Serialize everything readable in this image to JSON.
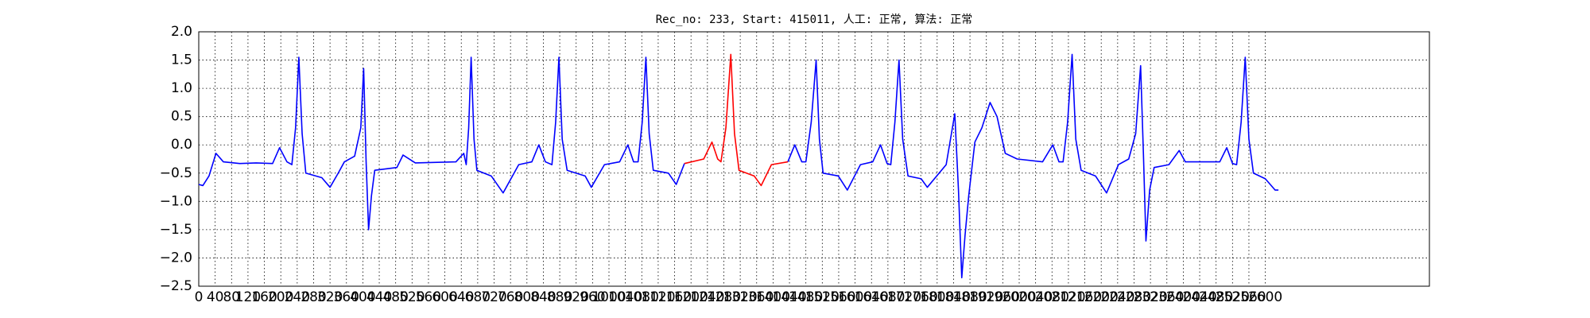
{
  "chart_data": {
    "type": "line",
    "title": "Rec_no: 233, Start: 415011, 人工: 正常, 算法: 正常",
    "x": [
      0,
      10,
      25,
      42,
      60,
      100,
      140,
      180,
      197,
      215,
      227,
      236,
      244,
      252,
      261,
      300,
      320,
      340,
      355,
      380,
      395,
      402,
      408,
      414,
      421,
      429,
      483,
      498,
      528,
      627,
      646,
      652,
      658,
      664,
      671,
      678,
      713,
      742,
      780,
      812,
      829,
      845,
      861,
      870,
      878,
      886,
      898,
      942,
      957,
      989,
      1026,
      1046,
      1060,
      1071,
      1081,
      1090,
      1098,
      1108,
      1145,
      1164,
      1184,
      1231,
      1251,
      1265,
      1273,
      1285,
      1297,
      1306,
      1317,
      1354,
      1371,
      1396,
      1436,
      1453,
      1470,
      1480,
      1493,
      1505,
      1513,
      1522,
      1559,
      1581,
      1613,
      1643,
      1662,
      1678,
      1687,
      1697,
      1707,
      1716,
      1729,
      1761,
      1776,
      1822,
      1843,
      1852,
      1860,
      1868,
      1877,
      1892,
      1909,
      1929,
      1946,
      1966,
      1995,
      2057,
      2082,
      2097,
      2107,
      2118,
      2129,
      2138,
      2151,
      2186,
      2213,
      2242,
      2267,
      2284,
      2296,
      2303,
      2309,
      2318,
      2329,
      2365,
      2390,
      2405,
      2422,
      2489,
      2506,
      2520,
      2530,
      2541,
      2551,
      2560,
      2571,
      2600,
      2624,
      2632
    ],
    "series": [
      {
        "color": "#0000ff",
        "values": [
          -0.7,
          -0.72,
          -0.55,
          -0.15,
          -0.3,
          -0.33,
          -0.32,
          -0.33,
          -0.05,
          -0.3,
          -0.35,
          0.3,
          1.55,
          0.2,
          -0.5,
          -0.58,
          -0.75,
          -0.5,
          -0.3,
          -0.2,
          0.3,
          1.35,
          -0.3,
          -1.5,
          -0.9,
          -0.45,
          -0.4,
          -0.18,
          -0.32,
          -0.3,
          -0.15,
          -0.35,
          0.3,
          1.55,
          0.1,
          -0.45,
          -0.55,
          -0.85,
          -0.35,
          -0.3,
          0,
          -0.3,
          -0.35,
          0.4,
          1.55,
          0.1,
          -0.45,
          -0.55,
          -0.75,
          -0.35,
          -0.3,
          0,
          -0.3,
          -0.3,
          0.4,
          1.55,
          0.2,
          -0.45,
          -0.5,
          -0.7,
          -0.33,
          null,
          null,
          null,
          null,
          null,
          null,
          null,
          null,
          null,
          null,
          null,
          -0.3,
          0,
          -0.3,
          -0.3,
          0.4,
          1.5,
          0.1,
          -0.5,
          -0.55,
          -0.8,
          -0.35,
          -0.3,
          0,
          -0.33,
          -0.35,
          0.4,
          1.5,
          0.1,
          -0.55,
          -0.6,
          -0.75,
          -0.35,
          0.55,
          -0.8,
          -2.35,
          -1.6,
          -0.9,
          0.05,
          0.3,
          0.75,
          0.5,
          -0.15,
          -0.25,
          -0.3,
          0,
          -0.3,
          -0.3,
          0.4,
          1.6,
          0.1,
          -0.45,
          -0.55,
          -0.85,
          -0.35,
          -0.25,
          0.2,
          1.4,
          -0.2,
          -1.7,
          -0.8,
          -0.4,
          -0.35,
          -0.1,
          -0.3,
          -0.3,
          -0.3,
          -0.05,
          -0.33,
          -0.35,
          0.4,
          1.55,
          0.1,
          -0.5,
          -0.6,
          -0.8,
          -0.8
        ]
      },
      {
        "color": "#ff0000",
        "values": [
          null,
          null,
          null,
          null,
          null,
          null,
          null,
          null,
          null,
          null,
          null,
          null,
          null,
          null,
          null,
          null,
          null,
          null,
          null,
          null,
          null,
          null,
          null,
          null,
          null,
          null,
          null,
          null,
          null,
          null,
          null,
          null,
          null,
          null,
          null,
          null,
          null,
          null,
          null,
          null,
          null,
          null,
          null,
          null,
          null,
          null,
          null,
          null,
          null,
          null,
          null,
          null,
          null,
          null,
          null,
          null,
          null,
          null,
          null,
          null,
          -0.33,
          -0.25,
          0.05,
          -0.25,
          -0.3,
          0.3,
          1.6,
          0.2,
          -0.45,
          -0.55,
          -0.72,
          -0.35,
          -0.3,
          null,
          null,
          null,
          null,
          null,
          null,
          null,
          null,
          null,
          null,
          null,
          null,
          null,
          null,
          null,
          null,
          null,
          null,
          null,
          null,
          null,
          null,
          null,
          null,
          null,
          null,
          null,
          null,
          null,
          null,
          null,
          null,
          null,
          null,
          null,
          null,
          null,
          null,
          null,
          null,
          null,
          null,
          null,
          null,
          null,
          null,
          null,
          null,
          null,
          null,
          null,
          null,
          null,
          null,
          null,
          null,
          null,
          null,
          null,
          null,
          null,
          null,
          null,
          null,
          null
        ]
      }
    ],
    "xlim": [
      0,
      3000
    ],
    "xticks": [
      0,
      40,
      80,
      120,
      160,
      200,
      240,
      280,
      320,
      360,
      400,
      440,
      480,
      520,
      560,
      600,
      640,
      680,
      720,
      760,
      800,
      840,
      880,
      920,
      960,
      1000,
      1040,
      1080,
      1120,
      1160,
      1200,
      1240,
      1280,
      1320,
      1360,
      1400,
      1440,
      1480,
      1520,
      1560,
      1600,
      1640,
      1680,
      1720,
      1760,
      1800,
      1840,
      1880,
      1920,
      1960,
      2000,
      2040,
      2080,
      2120,
      2160,
      2200,
      2240,
      2280,
      2320,
      2360,
      2400,
      2440,
      2480,
      2520,
      2560,
      2600
    ],
    "ylim": [
      -2.5,
      2.0
    ],
    "yticks": [
      {
        "value": -2.5,
        "label": "−2.5"
      },
      {
        "value": -2.0,
        "label": "−2.0"
      },
      {
        "value": -1.5,
        "label": "−1.5"
      },
      {
        "value": -1.0,
        "label": "−1.0"
      },
      {
        "value": -0.5,
        "label": "−0.5"
      },
      {
        "value": 0,
        "label": "0.0"
      },
      {
        "value": 0.5,
        "label": "0.5"
      },
      {
        "value": 1.0,
        "label": "1.0"
      },
      {
        "value": 1.5,
        "label": "1.5"
      },
      {
        "value": 2.0,
        "label": "2.0"
      }
    ],
    "grid": true
  }
}
